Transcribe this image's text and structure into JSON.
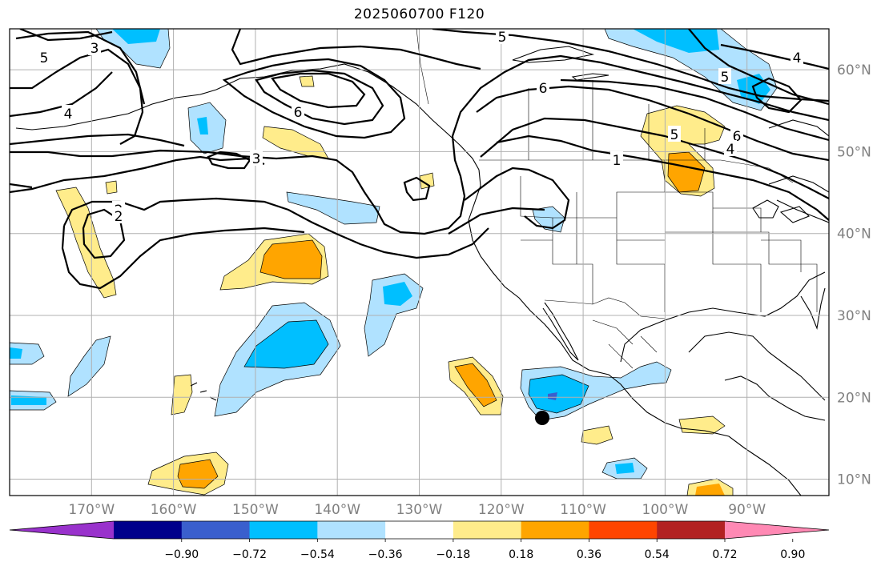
{
  "title": "2025060700 F120",
  "map": {
    "lon_range": [
      -180,
      -80
    ],
    "lat_range": [
      8,
      65
    ],
    "lon_ticks": [
      "170°W",
      "160°W",
      "150°W",
      "140°W",
      "130°W",
      "120°W",
      "110°W",
      "100°W",
      "90°W"
    ],
    "lat_ticks": [
      "10°N",
      "20°N",
      "30°N",
      "40°N",
      "50°N",
      "60°N"
    ],
    "grid": true,
    "marker": {
      "lon": -115,
      "lat": 17.5,
      "color": "#000000"
    }
  },
  "contours": {
    "color": "#000000",
    "labels": [
      "5",
      "3",
      "2",
      "4",
      "6",
      "3",
      "2",
      "5",
      "6",
      "1",
      "5",
      "6",
      "4",
      "5",
      "4"
    ]
  },
  "colorbar": {
    "colors": [
      "#9932cc",
      "#00008b",
      "#3a5fcd",
      "#00bfff",
      "#b0e2ff",
      "#ffffff",
      "#ffec8b",
      "#ffa500",
      "#ff4500",
      "#b22222",
      "#ff89b4"
    ],
    "tick_labels": [
      "−0.90",
      "−0.72",
      "−0.54",
      "−0.36",
      "−0.18",
      "0.18",
      "0.36",
      "0.54",
      "0.72",
      "0.90"
    ],
    "extend": "both"
  }
}
